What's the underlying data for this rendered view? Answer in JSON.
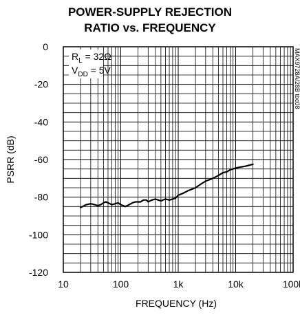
{
  "chart_data": {
    "type": "line",
    "title": [
      "POWER-SUPPLY REJECTION",
      "RATIO vs. FREQUENCY"
    ],
    "xlabel": "FREQUENCY (Hz)",
    "ylabel": "PSRR (dB)",
    "x_scale": "log",
    "xlim": [
      10,
      100000
    ],
    "ylim": [
      -120,
      0
    ],
    "x_ticks": [
      10,
      100,
      1000,
      10000,
      100000
    ],
    "x_tick_labels": [
      "10",
      "100",
      "1k",
      "10k",
      "100k"
    ],
    "y_ticks": [
      0,
      -20,
      -40,
      -60,
      -80,
      -100,
      -120
    ],
    "y_tick_labels": [
      "0",
      "-20",
      "-40",
      "-60",
      "-80",
      "-100",
      "-120"
    ],
    "grid": true,
    "annotation": {
      "rl_main": "R",
      "rl_sub": "L",
      "rl_value": " = 32Ω",
      "vdd_main": "V",
      "vdd_sub": "DD",
      "vdd_value": " = 5V"
    },
    "side_code": "MAX9728A/28B toc08",
    "series": [
      {
        "color": "#000000",
        "x": [
          20,
          25,
          30,
          35,
          40,
          45,
          50,
          55,
          60,
          70,
          80,
          90,
          100,
          110,
          120,
          140,
          160,
          180,
          200,
          220,
          250,
          280,
          300,
          350,
          400,
          450,
          500,
          600,
          700,
          800,
          900,
          1000,
          1200,
          1500,
          2000,
          2500,
          3000,
          4000,
          5000,
          6000,
          7000,
          8000,
          10000,
          12000,
          15000,
          20000
        ],
        "y": [
          -85.5,
          -84,
          -83.5,
          -84,
          -84.5,
          -84,
          -83,
          -82.5,
          -83,
          -84,
          -83.5,
          -83,
          -84,
          -84.5,
          -85,
          -84,
          -83,
          -82.5,
          -82.5,
          -82.5,
          -81.5,
          -81.5,
          -82.5,
          -81.5,
          -81,
          -81.5,
          -82,
          -81,
          -81.5,
          -81,
          -80.5,
          -79,
          -78,
          -76.5,
          -75,
          -73,
          -71.5,
          -70,
          -68.5,
          -67,
          -66.5,
          -65.5,
          -64.5,
          -64,
          -63.5,
          -62.5
        ]
      }
    ]
  }
}
